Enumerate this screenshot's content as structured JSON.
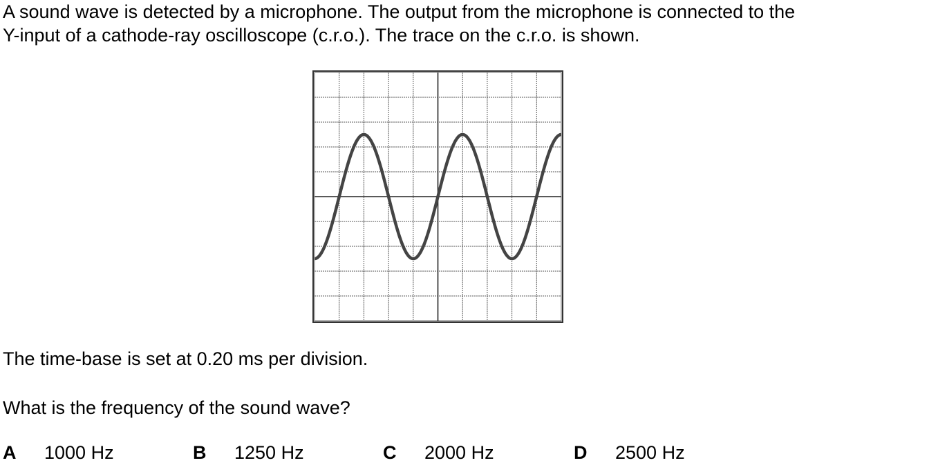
{
  "question": {
    "intro_line_1": "A sound wave is detected by a microphone. The output from the microphone is connected to the",
    "intro_line_2": "Y-input of a cathode-ray oscilloscope (c.r.o.). The trace on the c.r.o. is shown.",
    "timebase_text": "The time-base is set at 0.20 ms per division.",
    "prompt": "What is the frequency of the sound wave?"
  },
  "options": [
    {
      "letter": "A",
      "value": "1000 Hz"
    },
    {
      "letter": "B",
      "value": "1250 Hz"
    },
    {
      "letter": "C",
      "value": "2000 Hz"
    },
    {
      "letter": "D",
      "value": "2500 Hz"
    }
  ],
  "scope": {
    "divisions_x": 10,
    "divisions_y": 10,
    "wave_period_divisions": 4,
    "wave_amplitude_divisions": 2.5,
    "wave_start_phase": "trough",
    "trace_color": "#444444",
    "grid_color": "#555555"
  }
}
